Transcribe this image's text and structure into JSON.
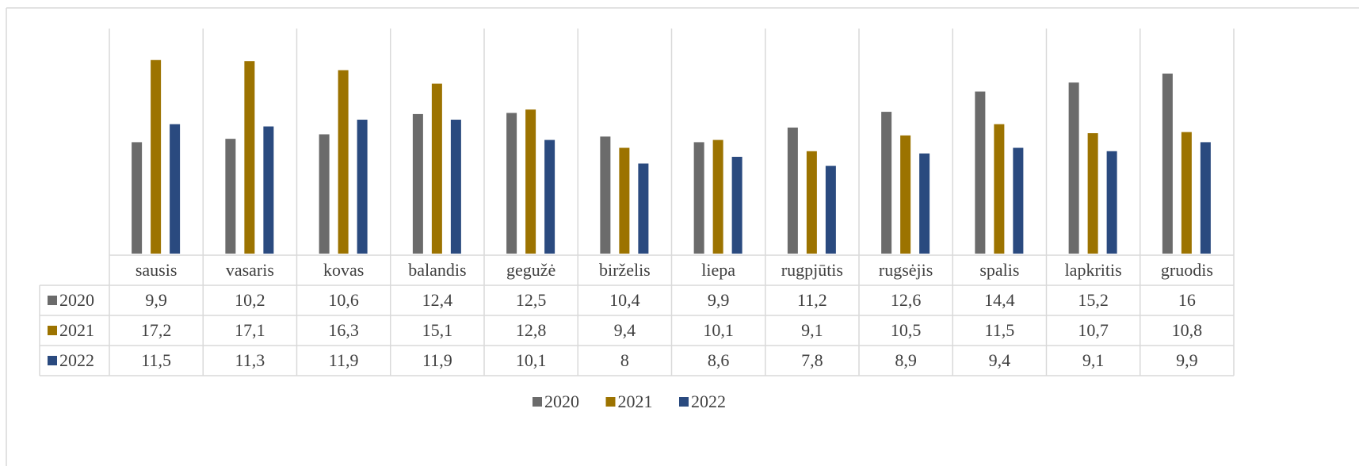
{
  "chart_data": {
    "type": "bar",
    "categories": [
      "sausis",
      "vasaris",
      "kovas",
      "balandis",
      "gegužė",
      "birželis",
      "liepa",
      "rugpjūtis",
      "rugsėjis",
      "spalis",
      "lapkritis",
      "gruodis"
    ],
    "series": [
      {
        "name": "2020",
        "color": "#6b6b6b",
        "values": [
          9.9,
          10.2,
          10.6,
          12.4,
          12.5,
          10.4,
          9.9,
          11.2,
          12.6,
          14.4,
          15.2,
          16
        ],
        "value_labels": [
          "9,9",
          "10,2",
          "10,6",
          "12,4",
          "12,5",
          "10,4",
          "9,9",
          "11,2",
          "12,6",
          "14,4",
          "15,2",
          "16"
        ]
      },
      {
        "name": "2021",
        "color": "#9c7300",
        "values": [
          17.2,
          17.1,
          16.3,
          15.1,
          12.8,
          9.4,
          10.1,
          9.1,
          10.5,
          11.5,
          10.7,
          10.8
        ],
        "value_labels": [
          "17,2",
          "17,1",
          "16,3",
          "15,1",
          "12,8",
          "9,4",
          "10,1",
          "9,1",
          "10,5",
          "11,5",
          "10,7",
          "10,8"
        ]
      },
      {
        "name": "2022",
        "color": "#2a4a7f",
        "values": [
          11.5,
          11.3,
          11.9,
          11.9,
          10.1,
          8,
          8.6,
          7.8,
          8.9,
          9.4,
          9.1,
          9.9
        ],
        "value_labels": [
          "11,5",
          "11,3",
          "11,9",
          "11,9",
          "10,1",
          "8",
          "8,6",
          "7,8",
          "8,9",
          "9,4",
          "9,1",
          "9,9"
        ]
      }
    ],
    "ylim": [
      0,
      20
    ]
  }
}
